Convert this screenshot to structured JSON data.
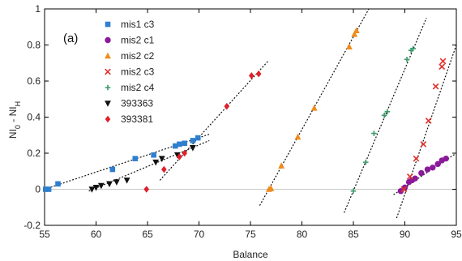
{
  "chart_data": {
    "type": "scatter",
    "panel_label": "(a)",
    "xlabel": "Balance",
    "ylabel_main": "NI",
    "ylabel_sub1": "0",
    "ylabel_mid": " - NI",
    "ylabel_sub2": "H",
    "xlim": [
      55,
      95
    ],
    "ylim": [
      -0.2,
      1.0
    ],
    "xticks": [
      55,
      60,
      65,
      70,
      75,
      80,
      85,
      90,
      95
    ],
    "yticks": [
      -0.2,
      0,
      0.2,
      0.4,
      0.6,
      0.8,
      1
    ],
    "ytick_labels": [
      "-0.2",
      "0",
      "0.2",
      "0.4",
      "0.6",
      "0.8",
      "1"
    ],
    "legend_position": "top-left",
    "series": [
      {
        "name": "mis1 c3",
        "color": "#2f7fd0",
        "marker": "square",
        "points": [
          [
            55.1,
            0.0
          ],
          [
            55.4,
            0.0
          ],
          [
            56.3,
            0.03
          ],
          [
            61.6,
            0.11
          ],
          [
            63.8,
            0.17
          ],
          [
            65.6,
            0.19
          ],
          [
            67.7,
            0.24
          ],
          [
            68.1,
            0.25
          ],
          [
            68.6,
            0.255
          ],
          [
            69.4,
            0.27
          ],
          [
            69.9,
            0.285
          ]
        ]
      },
      {
        "name": "mis2 c1",
        "color": "#8b1a9a",
        "marker": "circle",
        "points": [
          [
            89.6,
            -0.01
          ],
          [
            90.0,
            0.01
          ],
          [
            90.4,
            0.04
          ],
          [
            90.7,
            0.05
          ],
          [
            91.0,
            0.06
          ],
          [
            91.6,
            0.09
          ],
          [
            92.2,
            0.11
          ],
          [
            92.7,
            0.12
          ],
          [
            93.2,
            0.14
          ],
          [
            93.6,
            0.16
          ],
          [
            94.0,
            0.17
          ]
        ]
      },
      {
        "name": "mis2 c2",
        "color": "#f08c1c",
        "marker": "triangle",
        "points": [
          [
            76.8,
            0.0
          ],
          [
            77.0,
            0.005
          ],
          [
            78.0,
            0.13
          ],
          [
            79.6,
            0.29
          ],
          [
            81.2,
            0.45
          ],
          [
            84.6,
            0.79
          ],
          [
            85.1,
            0.86
          ],
          [
            85.3,
            0.88
          ]
        ]
      },
      {
        "name": "mis2 c3",
        "color": "#e0302a",
        "marker": "x",
        "points": [
          [
            89.9,
            0.0
          ],
          [
            90.5,
            0.07
          ],
          [
            91.1,
            0.17
          ],
          [
            91.8,
            0.25
          ],
          [
            92.3,
            0.38
          ],
          [
            93.0,
            0.57
          ],
          [
            93.6,
            0.68
          ],
          [
            93.7,
            0.71
          ]
        ]
      },
      {
        "name": "mis2 c4",
        "color": "#3a9a6a",
        "marker": "plus",
        "points": [
          [
            85.0,
            -0.01
          ],
          [
            86.2,
            0.15
          ],
          [
            87.0,
            0.31
          ],
          [
            88.0,
            0.41
          ],
          [
            88.3,
            0.43
          ],
          [
            90.2,
            0.72
          ],
          [
            90.6,
            0.77
          ],
          [
            90.8,
            0.78
          ]
        ]
      },
      {
        "name": "393363",
        "color": "#111111",
        "marker": "triangle-down",
        "points": [
          [
            59.6,
            0.0
          ],
          [
            60.0,
            0.01
          ],
          [
            60.5,
            0.02
          ],
          [
            61.3,
            0.03
          ],
          [
            62.0,
            0.04
          ],
          [
            63.0,
            0.05
          ],
          [
            65.8,
            0.15
          ],
          [
            66.4,
            0.17
          ],
          [
            67.9,
            0.19
          ],
          [
            69.4,
            0.23
          ]
        ]
      },
      {
        "name": "393381",
        "color": "#e0202a",
        "marker": "diamond",
        "points": [
          [
            64.9,
            0.0
          ],
          [
            66.6,
            0.11
          ],
          [
            68.1,
            0.18
          ],
          [
            68.6,
            0.2
          ],
          [
            72.7,
            0.46
          ],
          [
            75.1,
            0.63
          ],
          [
            75.8,
            0.64
          ]
        ]
      }
    ],
    "fit_lines": [
      {
        "x": [
          55,
          71
        ],
        "y": [
          0.0,
          0.305
        ]
      },
      {
        "x": [
          66.2,
          76.7
        ],
        "y": [
          0.05,
          0.71
        ]
      },
      {
        "x": [
          59.3,
          71
        ],
        "y": [
          -0.01,
          0.27
        ]
      },
      {
        "x": [
          75.9,
          86.5
        ],
        "y": [
          -0.09,
          1.0
        ]
      },
      {
        "x": [
          84.1,
          92.1
        ],
        "y": [
          -0.13,
          0.95
        ]
      },
      {
        "x": [
          88.9,
          95
        ],
        "y": [
          -0.03,
          0.2
        ]
      },
      {
        "x": [
          89.2,
          95
        ],
        "y": [
          -0.16,
          0.8
        ]
      }
    ]
  }
}
